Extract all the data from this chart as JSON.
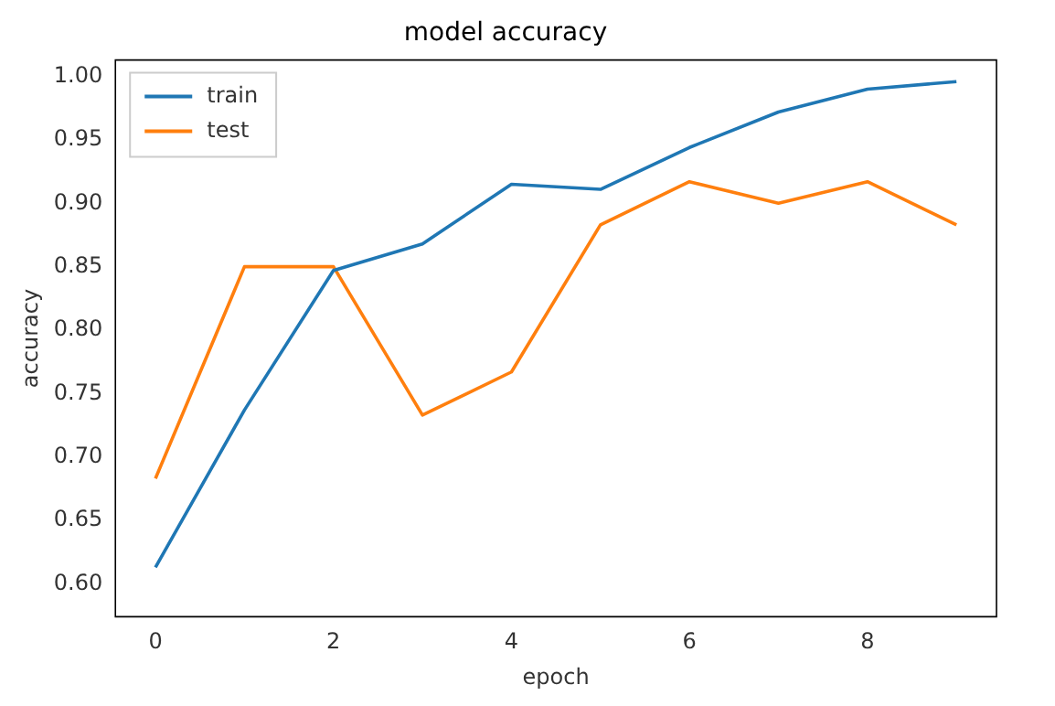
{
  "chart_data": {
    "type": "line",
    "title": "model accuracy",
    "xlabel": "epoch",
    "ylabel": "accuracy",
    "x": [
      0,
      1,
      2,
      3,
      4,
      5,
      6,
      7,
      8,
      9
    ],
    "series": [
      {
        "name": "train",
        "color": "#1f77b4",
        "values": [
          0.613,
          0.737,
          0.847,
          0.868,
          0.915,
          0.911,
          0.944,
          0.972,
          0.99,
          0.996
        ]
      },
      {
        "name": "test",
        "color": "#ff7f0e",
        "values": [
          0.683,
          0.85,
          0.85,
          0.733,
          0.767,
          0.883,
          0.917,
          0.9,
          0.917,
          0.883
        ]
      }
    ],
    "xlim": [
      -0.45,
      9.45
    ],
    "xticks": [
      0,
      2,
      4,
      6,
      8
    ],
    "ylim": [
      0.574,
      1.013
    ],
    "yticks": [
      {
        "value": 0.6,
        "label": "0.60"
      },
      {
        "value": 0.65,
        "label": "0.65"
      },
      {
        "value": 0.7,
        "label": "0.70"
      },
      {
        "value": 0.75,
        "label": "0.75"
      },
      {
        "value": 0.8,
        "label": "0.80"
      },
      {
        "value": 0.85,
        "label": "0.85"
      },
      {
        "value": 0.9,
        "label": "0.90"
      },
      {
        "value": 0.95,
        "label": "0.95"
      },
      {
        "value": 1.0,
        "label": "1.00"
      }
    ],
    "grid": false,
    "legend": "top left",
    "marker": "none",
    "line_style": "solid"
  }
}
